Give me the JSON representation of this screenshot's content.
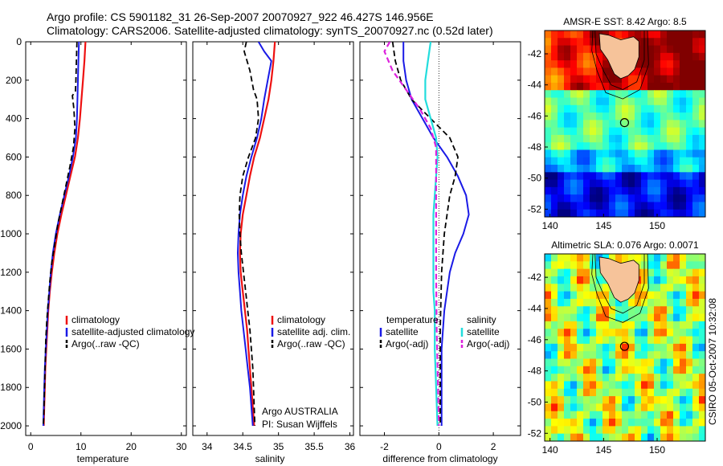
{
  "header": {
    "line1": "Argo profile: CS 5901182_31 26-Sep-2007 20070927_922 46.427S 146.956E",
    "line2": "Climatology: CARS2006. Satellite-adjusted climatology: synTS_20070927.nc (0.52d later)"
  },
  "side_label": "CSIRO 05-Oct-2007 10:32:08",
  "colors": {
    "climatology": "#ee1111",
    "satellite": "#1a1ae6",
    "argo": "#000000",
    "salinity_sat": "#22dddd",
    "salinity_argo": "#dd22dd",
    "land": "#f6c39a",
    "float_marker": "#000000"
  },
  "chart_data": [
    {
      "type": "line",
      "panel": "temperature",
      "xlabel": "temperature",
      "ylabel": "",
      "xlim": [
        -1,
        31
      ],
      "ylim": [
        2050,
        0
      ],
      "xticks": [
        0,
        10,
        20,
        30
      ],
      "yticks": [
        0,
        200,
        400,
        600,
        800,
        1000,
        1200,
        1400,
        1600,
        1800,
        2000
      ],
      "legend": {
        "placement": "lower-right",
        "entries": [
          "climatology",
          "satellite-adjusted climatology",
          "Argo(..raw -QC)"
        ]
      },
      "series": [
        {
          "name": "climatology",
          "points": [
            [
              10.9,
              0
            ],
            [
              10.7,
              100
            ],
            [
              10.4,
              200
            ],
            [
              10.1,
              300
            ],
            [
              9.8,
              400
            ],
            [
              9.4,
              500
            ],
            [
              8.8,
              600
            ],
            [
              7.9,
              700
            ],
            [
              7.0,
              800
            ],
            [
              6.1,
              900
            ],
            [
              5.3,
              1000
            ],
            [
              4.7,
              1100
            ],
            [
              4.2,
              1200
            ],
            [
              3.8,
              1300
            ],
            [
              3.5,
              1400
            ],
            [
              3.3,
              1500
            ],
            [
              3.1,
              1600
            ],
            [
              2.9,
              1700
            ],
            [
              2.8,
              1800
            ],
            [
              2.7,
              1900
            ],
            [
              2.6,
              2000
            ]
          ]
        },
        {
          "name": "satellite-adjusted climatology",
          "points": [
            [
              9.6,
              0
            ],
            [
              9.5,
              100
            ],
            [
              9.4,
              200
            ],
            [
              9.3,
              300
            ],
            [
              9.2,
              400
            ],
            [
              9.0,
              500
            ],
            [
              8.4,
              600
            ],
            [
              7.6,
              700
            ],
            [
              6.7,
              800
            ],
            [
              5.8,
              900
            ],
            [
              5.0,
              1000
            ],
            [
              4.4,
              1100
            ],
            [
              4.0,
              1200
            ],
            [
              3.7,
              1300
            ],
            [
              3.4,
              1400
            ],
            [
              3.2,
              1500
            ],
            [
              3.0,
              1600
            ],
            [
              2.8,
              1700
            ],
            [
              2.7,
              1800
            ],
            [
              2.6,
              1900
            ],
            [
              2.5,
              2000
            ]
          ]
        },
        {
          "name": "Argo(..raw -QC)",
          "points": [
            [
              9.2,
              0
            ],
            [
              9.1,
              100
            ],
            [
              9.0,
              200
            ],
            [
              8.9,
              260
            ],
            [
              8.3,
              280
            ],
            [
              8.6,
              350
            ],
            [
              8.8,
              450
            ],
            [
              8.5,
              550
            ],
            [
              7.8,
              650
            ],
            [
              7.0,
              750
            ],
            [
              6.2,
              850
            ],
            [
              5.4,
              950
            ],
            [
              4.8,
              1050
            ],
            [
              4.2,
              1150
            ],
            [
              3.8,
              1250
            ],
            [
              3.5,
              1350
            ],
            [
              3.2,
              1450
            ],
            [
              3.0,
              1550
            ],
            [
              2.9,
              1650
            ],
            [
              2.8,
              1750
            ],
            [
              2.7,
              1850
            ],
            [
              2.6,
              1950
            ],
            [
              2.5,
              2000
            ]
          ]
        }
      ]
    },
    {
      "type": "line",
      "panel": "salinity",
      "xlabel": "salinity",
      "ylabel": "",
      "xlim": [
        33.8,
        36.05
      ],
      "ylim": [
        2050,
        0
      ],
      "xticks": [
        34,
        34.5,
        35,
        35.5,
        36
      ],
      "legend": {
        "placement": "lower-right",
        "entries": [
          "climatology",
          "satellite adj. clim.",
          "Argo(..raw -QC)"
        ]
      },
      "note_lines": [
        "Argo AUSTRALIA",
        "PI: Susan Wijffels"
      ],
      "series": [
        {
          "name": "climatology",
          "points": [
            [
              34.95,
              0
            ],
            [
              34.93,
              100
            ],
            [
              34.9,
              200
            ],
            [
              34.86,
              300
            ],
            [
              34.8,
              400
            ],
            [
              34.74,
              500
            ],
            [
              34.66,
              600
            ],
            [
              34.6,
              700
            ],
            [
              34.55,
              800
            ],
            [
              34.5,
              900
            ],
            [
              34.47,
              1000
            ],
            [
              34.46,
              1100
            ],
            [
              34.47,
              1200
            ],
            [
              34.5,
              1300
            ],
            [
              34.53,
              1400
            ],
            [
              34.56,
              1500
            ],
            [
              34.58,
              1600
            ],
            [
              34.6,
              1700
            ],
            [
              34.62,
              1800
            ],
            [
              34.64,
              1900
            ],
            [
              34.66,
              2000
            ]
          ]
        },
        {
          "name": "satellite adj. clim.",
          "points": [
            [
              34.72,
              0
            ],
            [
              34.8,
              50
            ],
            [
              34.9,
              100
            ],
            [
              34.85,
              200
            ],
            [
              34.8,
              300
            ],
            [
              34.76,
              400
            ],
            [
              34.7,
              500
            ],
            [
              34.62,
              600
            ],
            [
              34.55,
              700
            ],
            [
              34.5,
              800
            ],
            [
              34.46,
              900
            ],
            [
              34.44,
              1000
            ],
            [
              34.43,
              1100
            ],
            [
              34.44,
              1200
            ],
            [
              34.46,
              1300
            ],
            [
              34.48,
              1400
            ],
            [
              34.51,
              1500
            ],
            [
              34.54,
              1600
            ],
            [
              34.57,
              1700
            ],
            [
              34.6,
              1800
            ],
            [
              34.62,
              1900
            ],
            [
              34.64,
              2000
            ]
          ]
        },
        {
          "name": "Argo(..raw -QC)",
          "points": [
            [
              34.55,
              0
            ],
            [
              34.52,
              50
            ],
            [
              34.6,
              150
            ],
            [
              34.65,
              250
            ],
            [
              34.7,
              300
            ],
            [
              34.72,
              400
            ],
            [
              34.68,
              500
            ],
            [
              34.58,
              600
            ],
            [
              34.5,
              700
            ],
            [
              34.46,
              800
            ],
            [
              34.45,
              900
            ],
            [
              34.46,
              1000
            ],
            [
              34.48,
              1100
            ],
            [
              34.51,
              1200
            ],
            [
              34.54,
              1300
            ],
            [
              34.57,
              1400
            ],
            [
              34.6,
              1500
            ],
            [
              34.62,
              1600
            ],
            [
              34.64,
              1700
            ],
            [
              34.65,
              1800
            ],
            [
              34.66,
              1900
            ],
            [
              34.67,
              2000
            ]
          ]
        }
      ]
    },
    {
      "type": "line",
      "panel": "difference",
      "xlabel": "difference from climatology",
      "ylabel": "",
      "xlim": [
        -2.9,
        3.0
      ],
      "ylim": [
        2050,
        0
      ],
      "xticks": [
        -2,
        0,
        2
      ],
      "zero_line": true,
      "legend": {
        "placement": "lower-center",
        "columns": [
          {
            "header": "temperature",
            "entries": [
              "satellite",
              "Argo(-adj)"
            ]
          },
          {
            "header": "salinity",
            "entries": [
              "satellite",
              "Argo(-adj)"
            ]
          }
        ]
      },
      "series": [
        {
          "name": "temperature satellite",
          "points": [
            [
              -1.3,
              0
            ],
            [
              -1.3,
              100
            ],
            [
              -1.2,
              200
            ],
            [
              -1.0,
              300
            ],
            [
              -0.6,
              400
            ],
            [
              -0.2,
              500
            ],
            [
              0.3,
              600
            ],
            [
              0.7,
              700
            ],
            [
              1.0,
              800
            ],
            [
              1.1,
              900
            ],
            [
              0.9,
              1000
            ],
            [
              0.6,
              1100
            ],
            [
              0.4,
              1200
            ],
            [
              0.3,
              1300
            ],
            [
              0.2,
              1400
            ],
            [
              0.15,
              1500
            ],
            [
              0.1,
              1600
            ],
            [
              0.1,
              1800
            ],
            [
              0.1,
              2000
            ]
          ]
        },
        {
          "name": "temperature Argo(-adj)",
          "points": [
            [
              -1.7,
              0
            ],
            [
              -1.6,
              100
            ],
            [
              -1.4,
              200
            ],
            [
              -1.0,
              300
            ],
            [
              -0.3,
              400
            ],
            [
              0.4,
              500
            ],
            [
              0.7,
              600
            ],
            [
              0.6,
              700
            ],
            [
              0.4,
              800
            ],
            [
              0.3,
              900
            ],
            [
              0.2,
              1000
            ],
            [
              0.1,
              1200
            ],
            [
              0.05,
              1500
            ],
            [
              0.05,
              2000
            ]
          ]
        },
        {
          "name": "salinity satellite",
          "points": [
            [
              -0.3,
              0
            ],
            [
              -0.4,
              100
            ],
            [
              -0.5,
              200
            ],
            [
              -0.5,
              300
            ],
            [
              -0.3,
              400
            ],
            [
              -0.1,
              500
            ],
            [
              -0.05,
              600
            ],
            [
              -0.1,
              700
            ],
            [
              -0.15,
              800
            ],
            [
              -0.2,
              900
            ],
            [
              -0.2,
              1000
            ],
            [
              -0.2,
              1100
            ],
            [
              -0.2,
              1200
            ],
            [
              -0.2,
              1300
            ],
            [
              -0.15,
              1400
            ],
            [
              -0.15,
              1600
            ],
            [
              -0.1,
              1800
            ],
            [
              -0.05,
              2000
            ]
          ]
        },
        {
          "name": "salinity Argo(-adj)",
          "points": [
            [
              -1.8,
              0
            ],
            [
              -2.0,
              50
            ],
            [
              -1.7,
              150
            ],
            [
              -1.2,
              250
            ],
            [
              -0.7,
              350
            ],
            [
              -0.3,
              450
            ],
            [
              -0.1,
              550
            ],
            [
              -0.1,
              700
            ],
            [
              -0.1,
              800
            ],
            [
              -0.1,
              1000
            ],
            [
              -0.1,
              1200
            ],
            [
              -0.08,
              1500
            ],
            [
              -0.03,
              1800
            ],
            [
              0.0,
              2000
            ]
          ]
        }
      ]
    },
    {
      "type": "heatmap",
      "panel": "sst-map",
      "title": "AMSR-E SST: 8.42  Argo: 8.5",
      "xlim": [
        139.5,
        154.5
      ],
      "ylim": [
        -52.5,
        -40.5
      ],
      "xticks": [
        140,
        145,
        150
      ],
      "yticks": [
        -42,
        -44,
        -46,
        -48,
        -50,
        -52
      ],
      "float": [
        146.956,
        -46.427
      ]
    },
    {
      "type": "heatmap",
      "panel": "sla-map",
      "title": "Altimetric SLA: 0.076  Argo: 0.0071",
      "xlim": [
        139.5,
        154.5
      ],
      "ylim": [
        -52.5,
        -40.5
      ],
      "xticks": [
        140,
        145,
        150
      ],
      "yticks": [
        -42,
        -44,
        -46,
        -48,
        -50,
        -52
      ],
      "float": [
        146.956,
        -46.427
      ]
    }
  ]
}
